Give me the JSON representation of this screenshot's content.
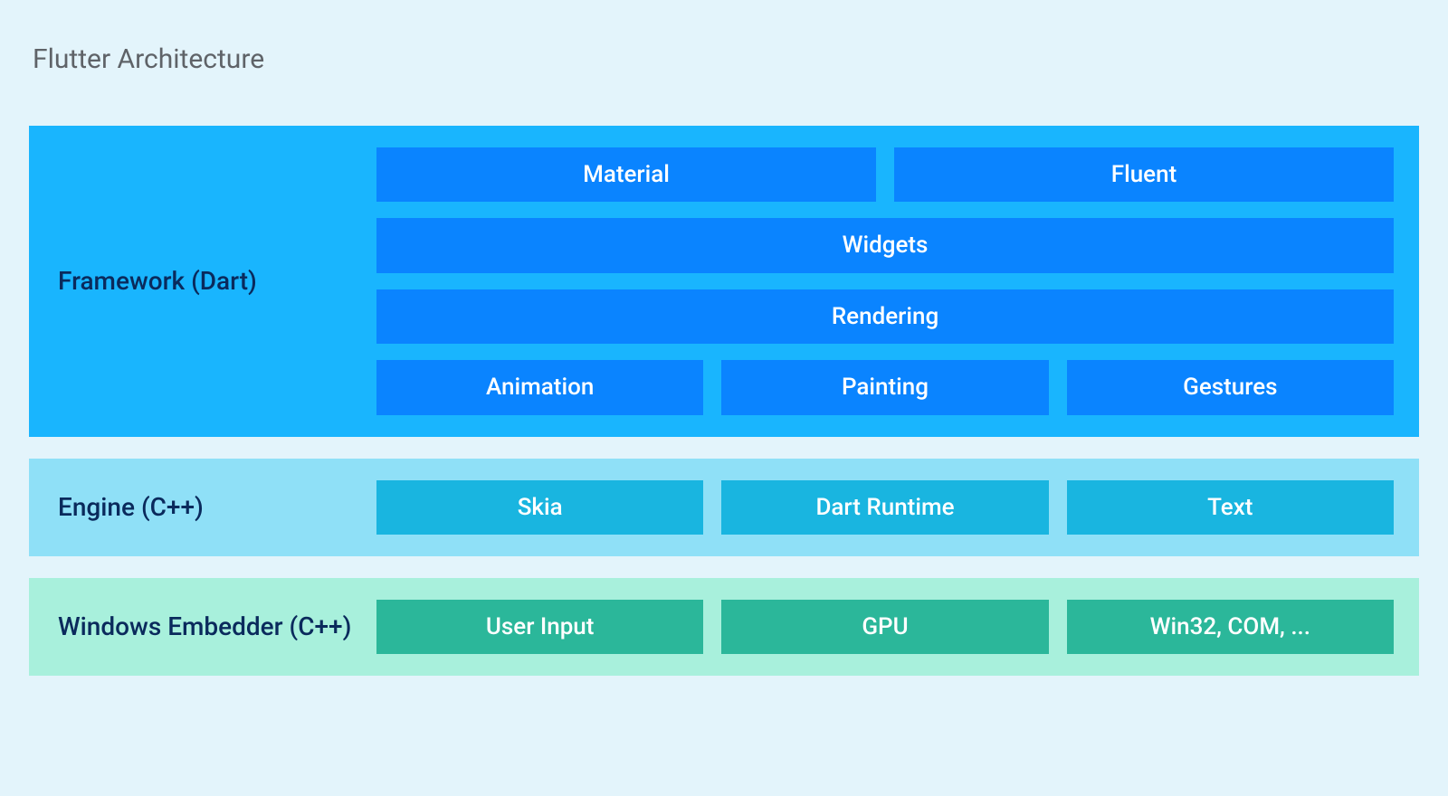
{
  "diagram": {
    "title": "Flutter Architecture",
    "page_background": "#e3f4fb",
    "title_color": "#5f6368",
    "title_fontsize": 30,
    "box_text_color": "#ffffff",
    "box_fontsize": 26,
    "label_fontsize": 28,
    "layers": [
      {
        "id": "framework",
        "label": "Framework (Dart)",
        "background_color": "#19b5fe",
        "label_color": "#0a2a5c",
        "box_color": "#0a84ff",
        "rows": [
          [
            {
              "label": "Material"
            },
            {
              "label": "Fluent"
            }
          ],
          [
            {
              "label": "Widgets"
            }
          ],
          [
            {
              "label": "Rendering"
            }
          ],
          [
            {
              "label": "Animation"
            },
            {
              "label": "Painting"
            },
            {
              "label": "Gestures"
            }
          ]
        ]
      },
      {
        "id": "engine",
        "label": "Engine (C++)",
        "background_color": "#8fe0f7",
        "label_color": "#0a2a5c",
        "box_color": "#19b5e0",
        "rows": [
          [
            {
              "label": "Skia"
            },
            {
              "label": "Dart Runtime"
            },
            {
              "label": "Text"
            }
          ]
        ]
      },
      {
        "id": "embedder",
        "label": "Windows Embedder (C++)",
        "background_color": "#a8f0dc",
        "label_color": "#0a2a5c",
        "box_color": "#2bb79a",
        "rows": [
          [
            {
              "label": "User Input"
            },
            {
              "label": "GPU"
            },
            {
              "label": "Win32, COM, ..."
            }
          ]
        ]
      }
    ]
  }
}
